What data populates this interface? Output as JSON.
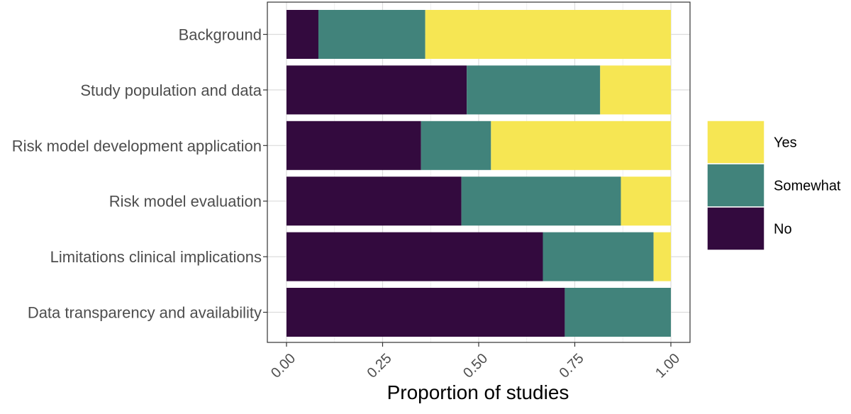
{
  "chart_data": {
    "type": "bar",
    "orientation": "horizontal",
    "stacked": true,
    "categories": [
      "Background",
      "Study population and data",
      "Risk model development application",
      "Risk model evaluation",
      "Limitations clinical implications",
      "Data transparency and availability"
    ],
    "series": [
      {
        "name": "No",
        "color": "#330a3e",
        "values": [
          0.083,
          0.469,
          0.35,
          0.455,
          0.667,
          0.724
        ]
      },
      {
        "name": "Somewhat",
        "color": "#41837b",
        "values": [
          0.278,
          0.347,
          0.182,
          0.415,
          0.288,
          0.276
        ]
      },
      {
        "name": "Yes",
        "color": "#f6e653",
        "values": [
          0.639,
          0.184,
          0.468,
          0.13,
          0.045,
          0.0
        ]
      }
    ],
    "legend_order": [
      "Yes",
      "Somewhat",
      "No"
    ],
    "xlabel": "Proportion of studies",
    "ylabel": "",
    "xlim": [
      0,
      1
    ],
    "x_ticks": [
      "0.00",
      "0.25",
      "0.50",
      "0.75",
      "1.00"
    ],
    "grid": true,
    "legend_position": "right"
  }
}
